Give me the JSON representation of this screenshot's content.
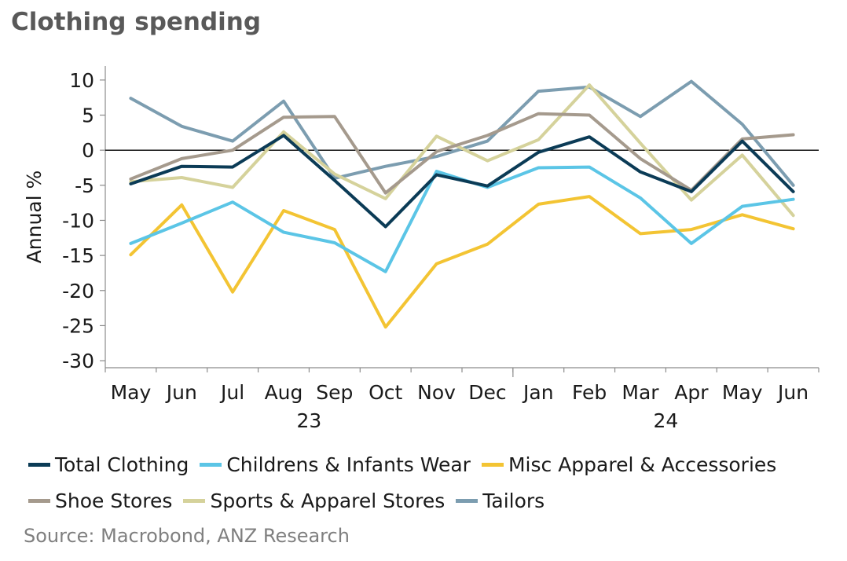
{
  "title": "Clothing spending",
  "source": "Source: Macrobond, ANZ Research",
  "chart_data": {
    "type": "line",
    "ylabel": "Annual %",
    "ylim": [
      -31,
      12
    ],
    "yticks": [
      10,
      5,
      0,
      -5,
      -10,
      -15,
      -20,
      -25,
      -30
    ],
    "categories": [
      "May",
      "Jun",
      "Jul",
      "Aug",
      "Sep",
      "Oct",
      "Nov",
      "Dec",
      "Jan",
      "Feb",
      "Mar",
      "Apr",
      "May",
      "Jun"
    ],
    "year_labels": [
      {
        "label": "23",
        "index": 3.5
      },
      {
        "label": "24",
        "index": 10.5
      }
    ],
    "zero_line": true,
    "grid": false,
    "legend_position": "bottom",
    "series": [
      {
        "name": "Total Clothing",
        "color": "#0b3b56",
        "values": [
          -4.8,
          -2.3,
          -2.4,
          2.1,
          -4.3,
          -10.9,
          -3.5,
          -5.1,
          -0.3,
          1.9,
          -3.1,
          -5.9,
          1.3,
          -5.9
        ]
      },
      {
        "name": "Childrens & Infants Wear",
        "color": "#5bc5e6",
        "values": [
          -13.3,
          -10.4,
          -7.4,
          -11.7,
          -13.2,
          -17.3,
          -3.0,
          -5.3,
          -2.5,
          -2.4,
          -6.8,
          -13.3,
          -8.0,
          -7.0
        ]
      },
      {
        "name": "Misc Apparel & Accessories",
        "color": "#f3c433",
        "values": [
          -14.9,
          -7.8,
          -20.2,
          -8.6,
          -11.3,
          -25.2,
          -16.2,
          -13.4,
          -7.7,
          -6.6,
          -11.9,
          -11.3,
          -9.2,
          -11.2
        ]
      },
      {
        "name": "Shoe Stores",
        "color": "#a59a8d",
        "values": [
          -4.1,
          -1.2,
          0.0,
          4.7,
          4.8,
          -6.1,
          -0.2,
          2.1,
          5.2,
          5.0,
          -1.2,
          -5.7,
          1.6,
          2.2
        ]
      },
      {
        "name": "Sports & Apparel Stores",
        "color": "#d5d29b",
        "values": [
          -4.5,
          -3.9,
          -5.3,
          2.6,
          -3.4,
          -6.9,
          2.0,
          -1.5,
          1.5,
          9.3,
          1.0,
          -7.1,
          -0.7,
          -9.3
        ]
      },
      {
        "name": "Tailors",
        "color": "#7c9db0",
        "values": [
          7.4,
          3.4,
          1.3,
          7.0,
          -4.0,
          -2.3,
          -0.9,
          1.3,
          8.4,
          9.0,
          4.8,
          9.8,
          3.7,
          -5.0
        ]
      }
    ]
  }
}
